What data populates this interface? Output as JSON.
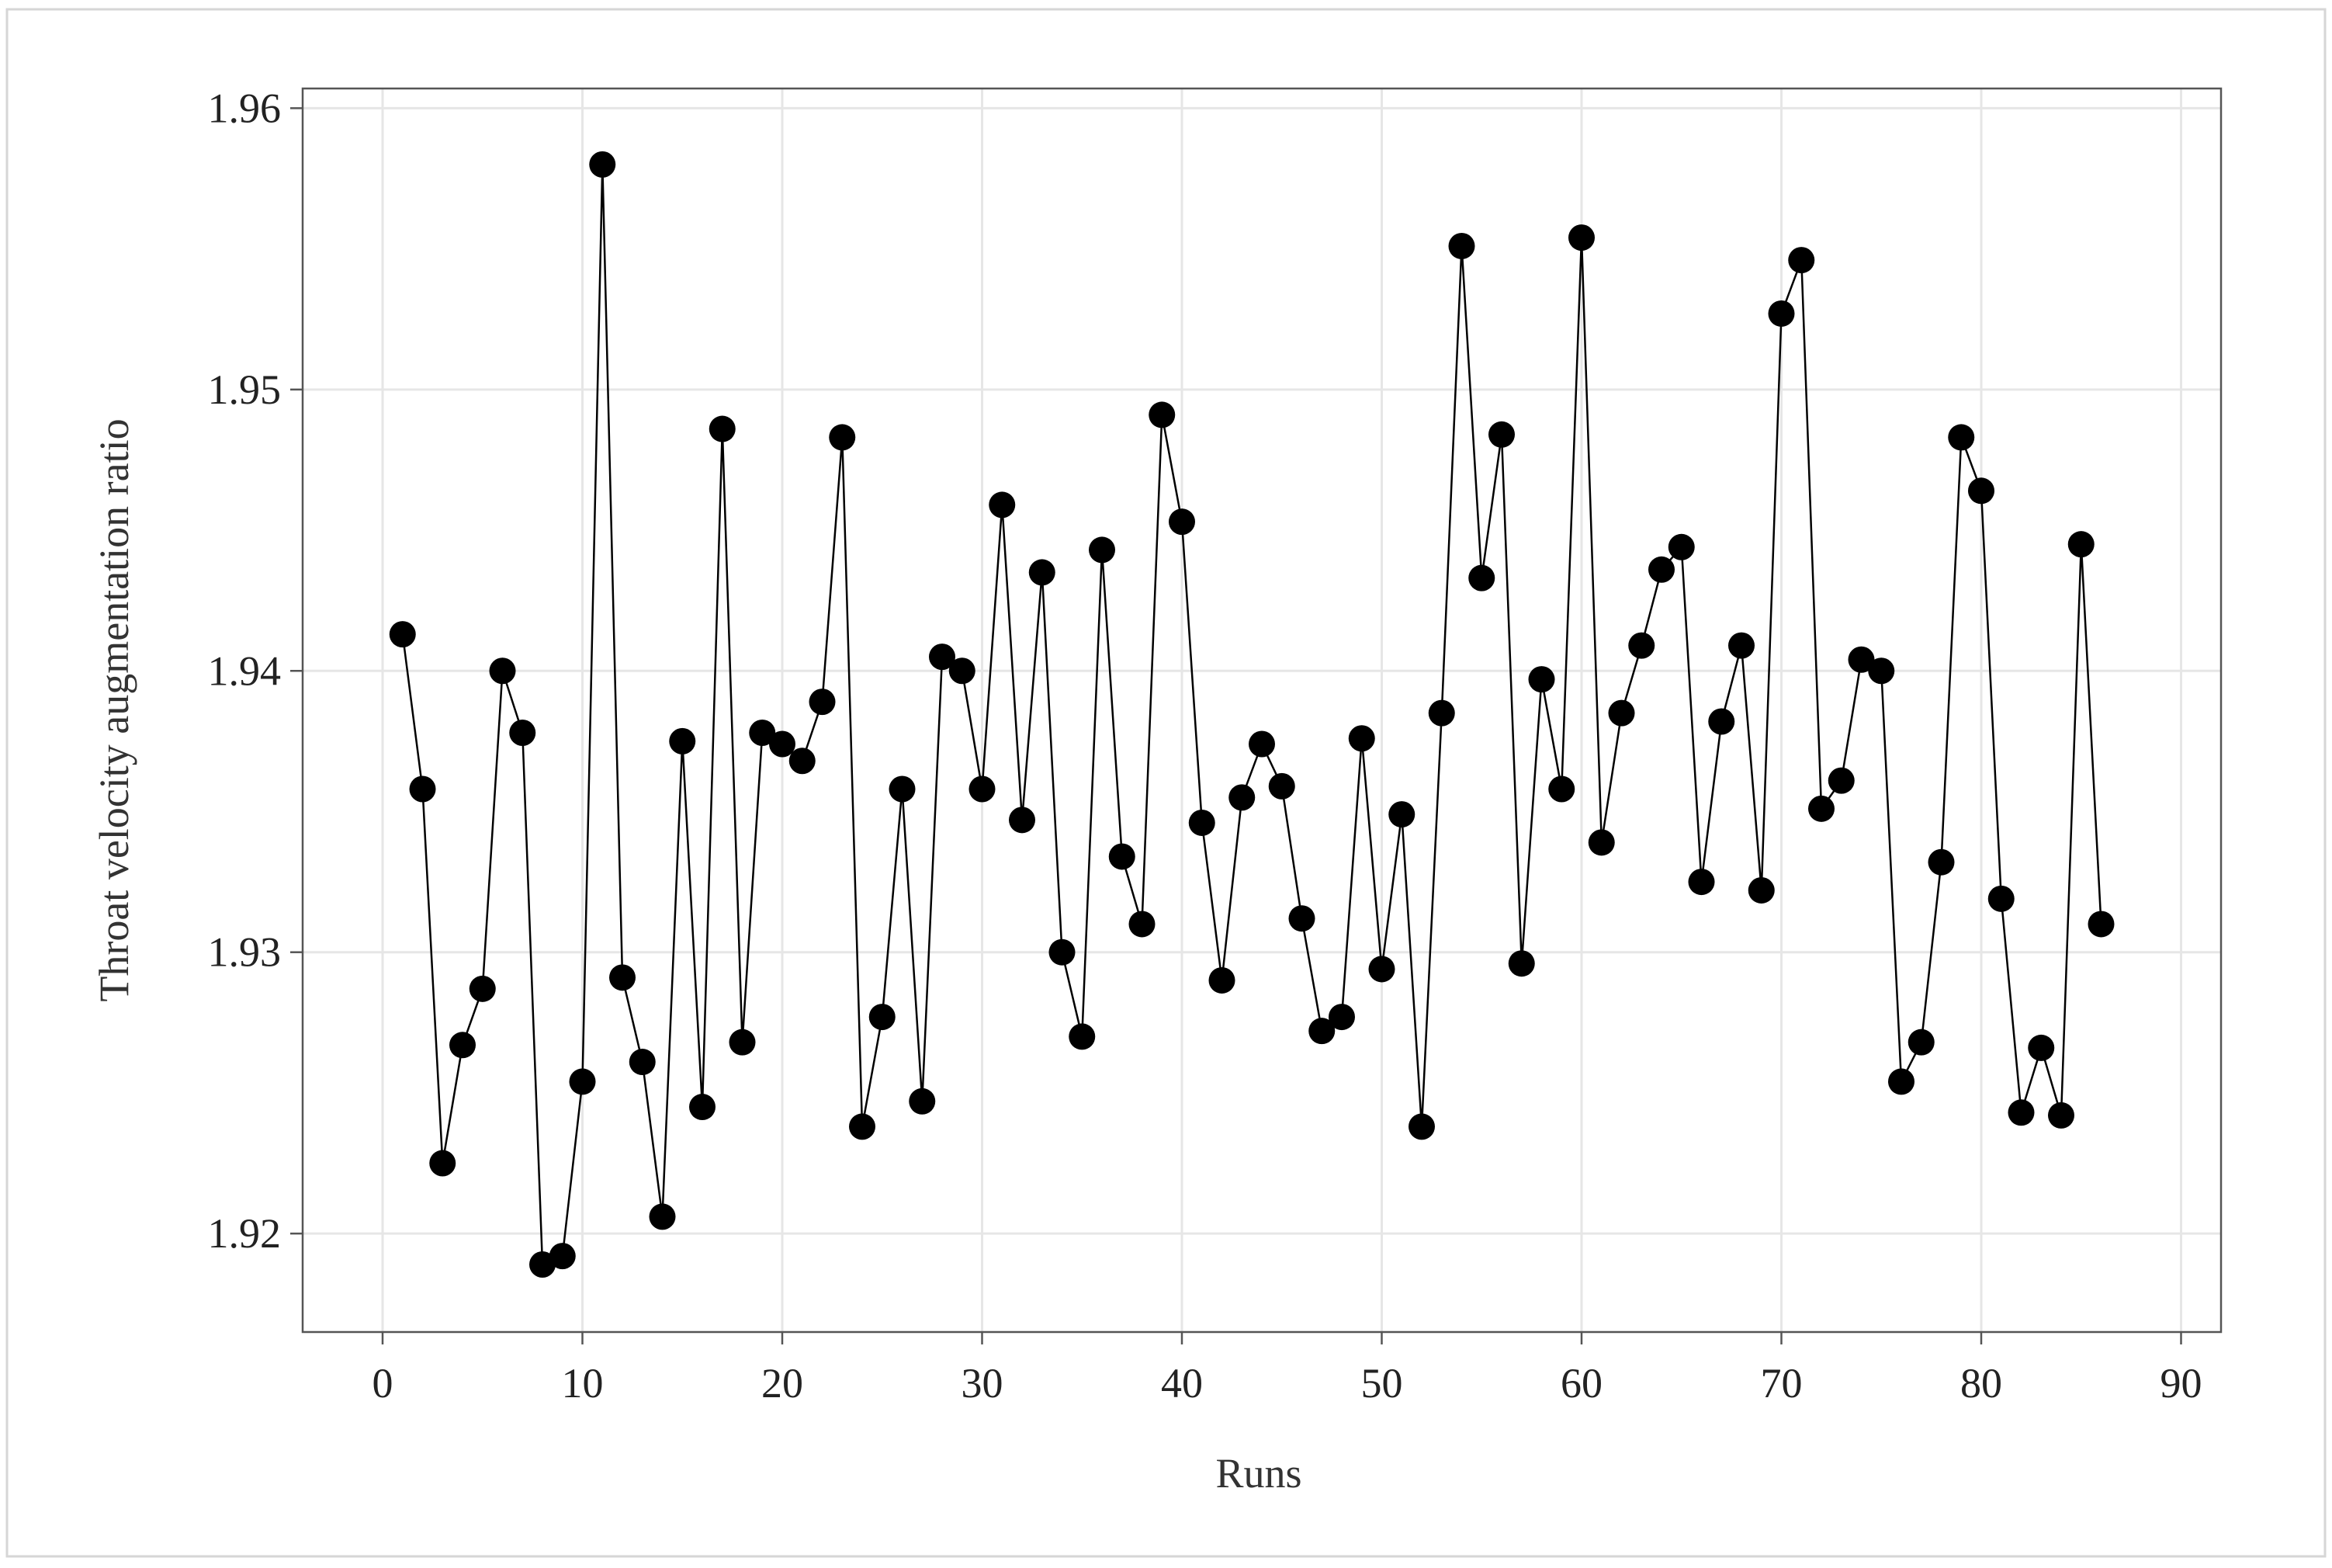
{
  "chart_data": {
    "type": "line",
    "title": "",
    "xlabel": "Runs",
    "ylabel": "Throat velocity augmentation ratio",
    "xlim": [
      -4,
      92
    ],
    "ylim": [
      1.9165,
      1.9607
    ],
    "xticks": [
      0,
      10,
      20,
      30,
      40,
      50,
      60,
      70,
      80,
      90
    ],
    "yticks": [
      1.92,
      1.93,
      1.94,
      1.95,
      1.96
    ],
    "grid": true,
    "legend": "none",
    "marker": "filled-circle",
    "line_color": "#000000",
    "marker_color": "#000000",
    "x": [
      1,
      2,
      3,
      4,
      5,
      6,
      7,
      8,
      9,
      10,
      11,
      12,
      13,
      14,
      15,
      16,
      17,
      18,
      19,
      20,
      21,
      22,
      23,
      24,
      25,
      26,
      27,
      28,
      29,
      30,
      31,
      32,
      33,
      34,
      35,
      36,
      37,
      38,
      39,
      40,
      41,
      42,
      43,
      44,
      45,
      46,
      47,
      48,
      49,
      50,
      51,
      52,
      53,
      54,
      55,
      56,
      57,
      58,
      59,
      60,
      61,
      62,
      63,
      64,
      65,
      66,
      67,
      68,
      69,
      70,
      71,
      72,
      73,
      74,
      75,
      76,
      77,
      78,
      79,
      80,
      81,
      82,
      83,
      84,
      85,
      86
    ],
    "y": [
      1.9413,
      1.9358,
      1.9225,
      1.9267,
      1.9287,
      1.94,
      1.9378,
      1.9189,
      1.9192,
      1.9254,
      1.958,
      1.9291,
      1.9261,
      1.9206,
      1.9375,
      1.9245,
      1.9486,
      1.9268,
      1.9378,
      1.9374,
      1.9368,
      1.9389,
      1.9483,
      1.9238,
      1.9277,
      1.9358,
      1.9247,
      1.9405,
      1.94,
      1.9358,
      1.9459,
      1.9347,
      1.9435,
      1.93,
      1.927,
      1.9443,
      1.9334,
      1.931,
      1.9491,
      1.9453,
      1.9346,
      1.929,
      1.9355,
      1.9374,
      1.9359,
      1.9312,
      1.9272,
      1.9277,
      1.9376,
      1.9294,
      1.9349,
      1.9238,
      1.9385,
      1.9551,
      1.9433,
      1.9484,
      1.9296,
      1.9397,
      1.9358,
      1.9554,
      1.9339,
      1.9385,
      1.9409,
      1.9436,
      1.9444,
      1.9325,
      1.9382,
      1.9409,
      1.9322,
      1.9527,
      1.9546,
      1.9351,
      1.9361,
      1.9404,
      1.94,
      1.9254,
      1.9268,
      1.9332,
      1.9483,
      1.9464,
      1.9319,
      1.9243,
      1.9266,
      1.9242,
      1.9445,
      1.931
    ]
  }
}
